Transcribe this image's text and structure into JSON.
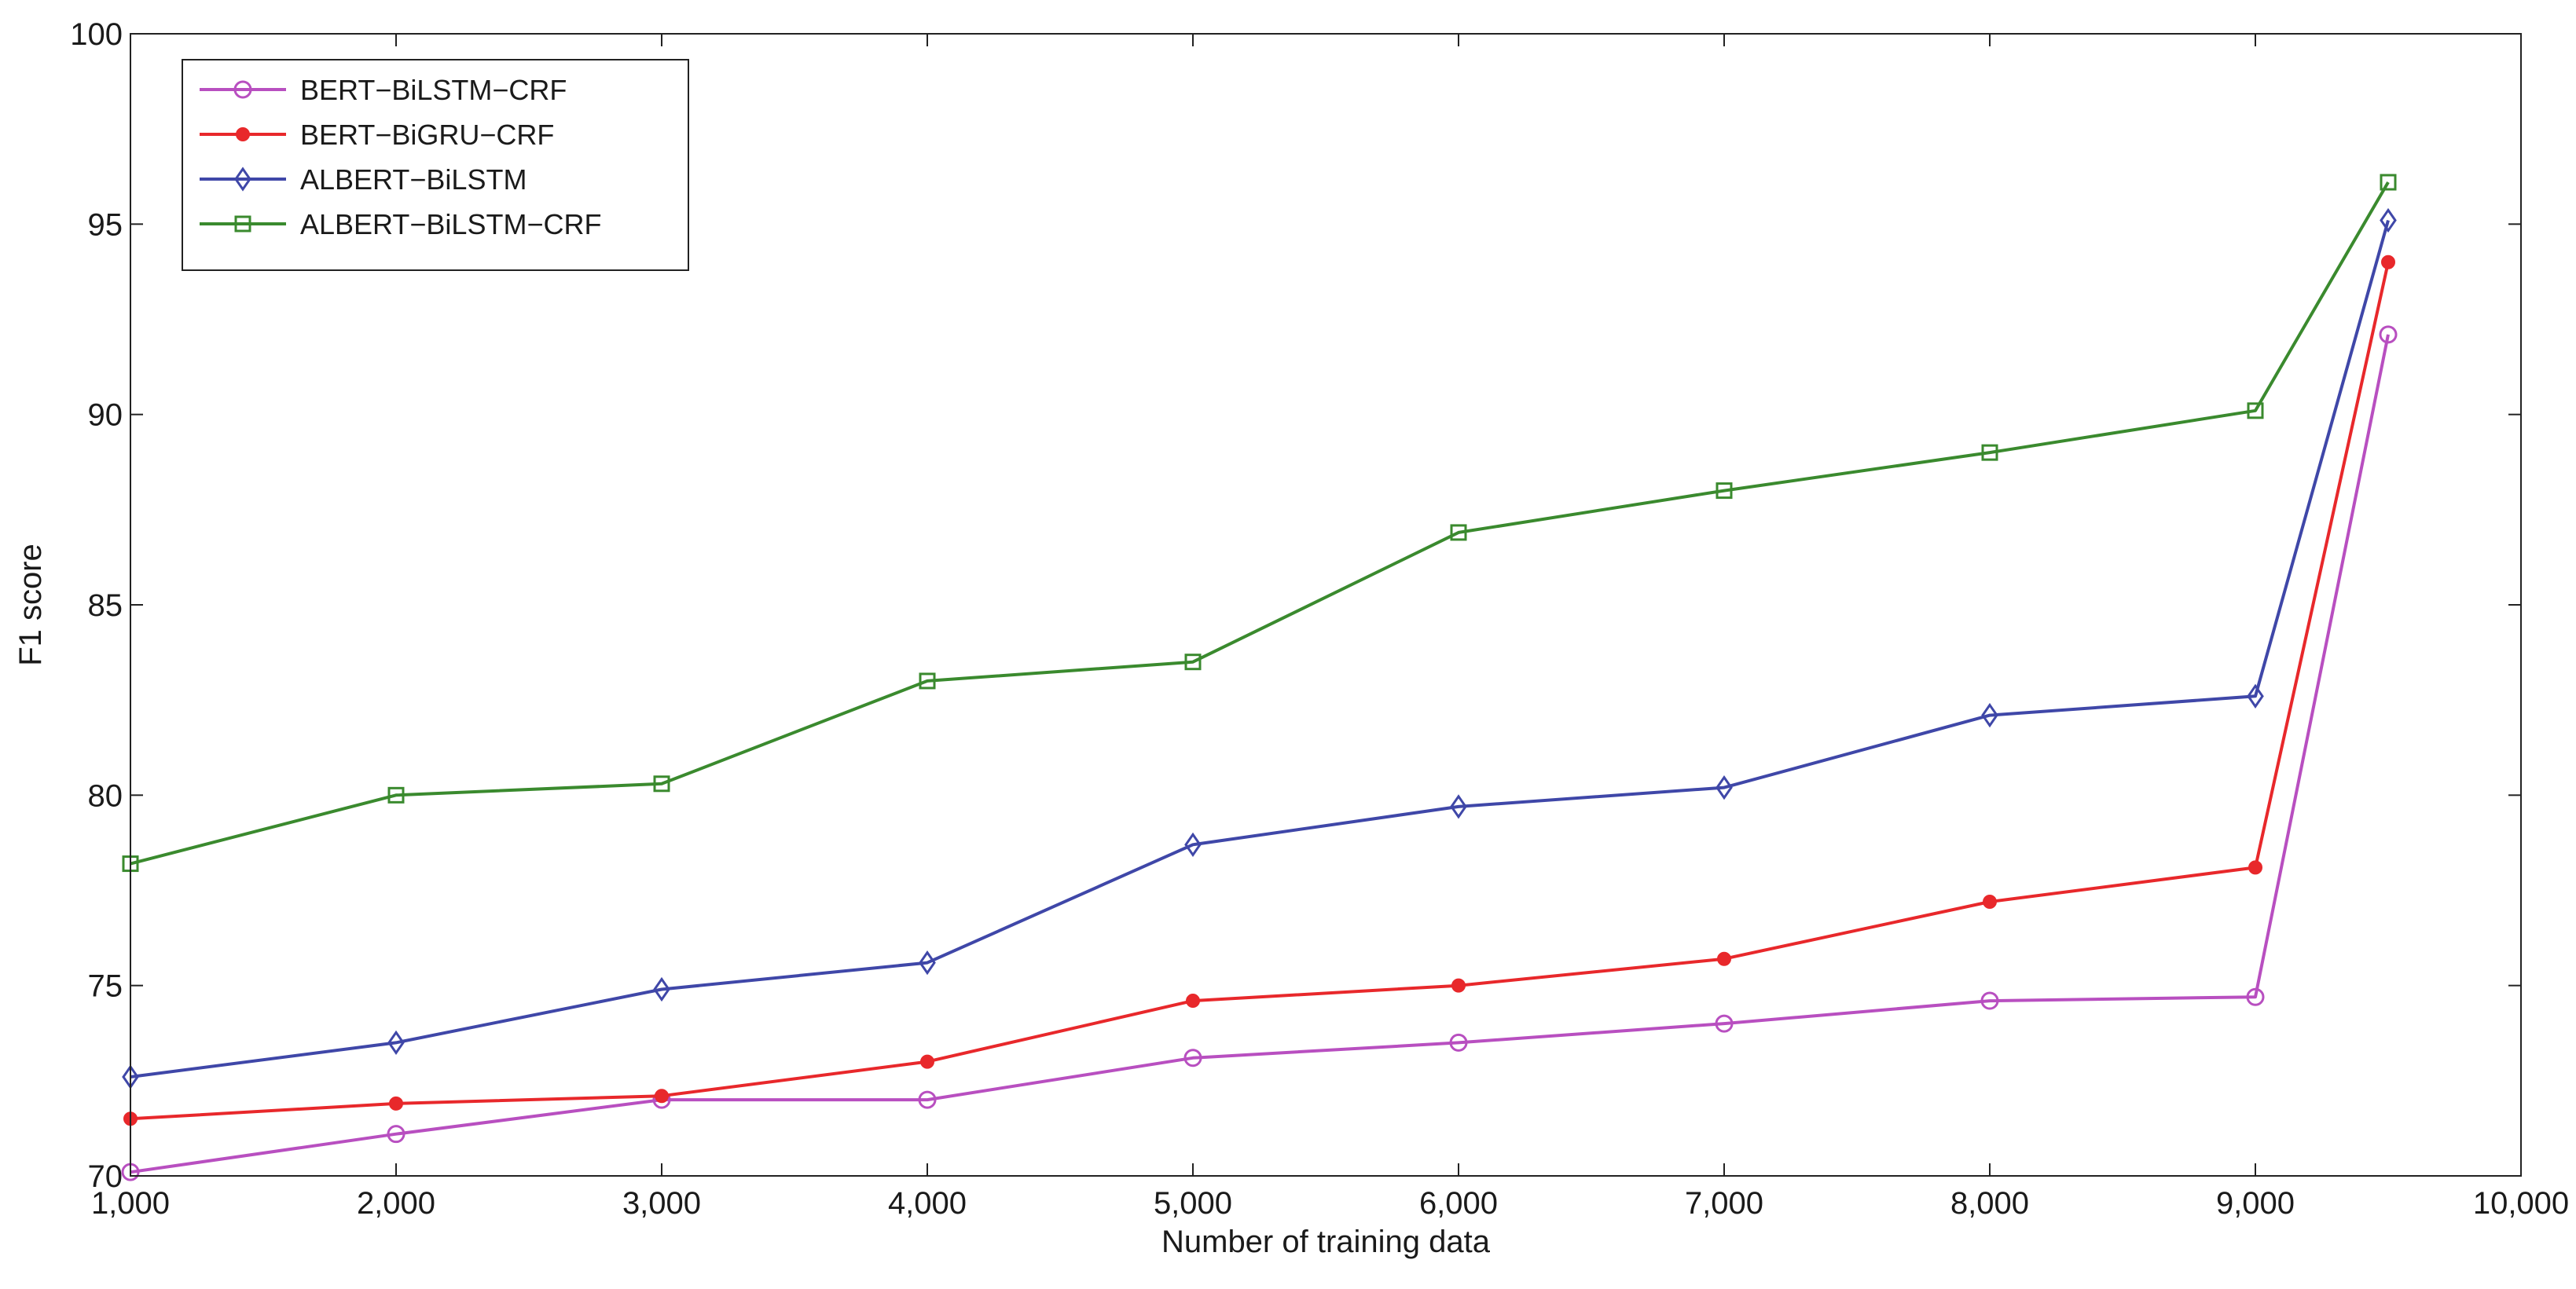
{
  "chart_data": {
    "type": "line",
    "xlabel": "Number of training data",
    "ylabel": "F1 score",
    "xlim": [
      1000,
      10000
    ],
    "ylim": [
      70,
      100
    ],
    "x_ticks": [
      1000,
      2000,
      3000,
      4000,
      5000,
      6000,
      7000,
      8000,
      9000,
      10000
    ],
    "x_tick_labels": [
      "1,000",
      "2,000",
      "3,000",
      "4,000",
      "5,000",
      "6,000",
      "7,000",
      "8,000",
      "9,000",
      "10,000"
    ],
    "y_ticks": [
      70,
      75,
      80,
      85,
      90,
      95,
      100
    ],
    "y_tick_labels": [
      "70",
      "75",
      "80",
      "85",
      "90",
      "95",
      "100"
    ],
    "grid": false,
    "legend_position": "top-left",
    "x": [
      1000,
      2000,
      3000,
      4000,
      5000,
      6000,
      7000,
      8000,
      9000,
      9500
    ],
    "series": [
      {
        "name": "BERT−BiLSTM−CRF",
        "color": "#b84fc0",
        "marker": "circle-open",
        "values": [
          70.1,
          71.1,
          72.0,
          72.0,
          73.1,
          73.5,
          74.0,
          74.6,
          74.7,
          92.1
        ]
      },
      {
        "name": "BERT−BiGRU−CRF",
        "color": "#e8282b",
        "marker": "dot-filled",
        "values": [
          71.5,
          71.9,
          72.1,
          73.0,
          74.6,
          75.0,
          75.7,
          77.2,
          78.1,
          94.0
        ]
      },
      {
        "name": "ALBERT−BiLSTM",
        "color": "#3f47a8",
        "marker": "diamond-open",
        "values": [
          72.6,
          73.5,
          74.9,
          75.6,
          78.7,
          79.7,
          80.2,
          82.1,
          82.6,
          95.1
        ]
      },
      {
        "name": "ALBERT−BiLSTM−CRF",
        "color": "#3a8a2e",
        "marker": "square-open",
        "values": [
          78.2,
          80.0,
          80.3,
          83.0,
          83.5,
          86.9,
          88.0,
          89.0,
          90.1,
          96.1
        ]
      }
    ]
  }
}
